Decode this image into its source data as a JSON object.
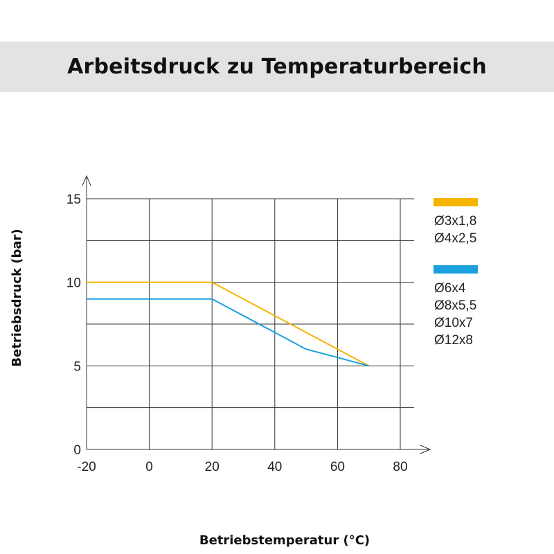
{
  "chart_data": {
    "type": "line",
    "title": "Arbeitsdruck zu Temperaturbereich",
    "xlabel": "Betriebstemperatur (°C)",
    "ylabel": "Betriebsdruck (bar)",
    "xlim": [
      -20,
      80
    ],
    "ylim": [
      0,
      15
    ],
    "xticks": [
      -20,
      0,
      20,
      40,
      60,
      80
    ],
    "yticks": [
      0,
      5,
      10,
      15
    ],
    "ygrid": [
      0,
      2.5,
      5,
      7.5,
      10,
      12.5,
      15
    ],
    "grid": true,
    "legend_position": "right",
    "series": [
      {
        "legend": [
          "Ø3x1,8",
          "Ø4x2,5"
        ],
        "color": "#f5b400",
        "x": [
          -20,
          20,
          70
        ],
        "y": [
          10,
          10,
          5
        ]
      },
      {
        "legend": [
          "Ø6x4",
          "Ø8x5,5",
          "Ø10x7",
          "Ø12x8"
        ],
        "color": "#1aa0dc",
        "x": [
          -20,
          20,
          50,
          70
        ],
        "y": [
          9,
          9,
          6,
          5
        ]
      }
    ]
  }
}
